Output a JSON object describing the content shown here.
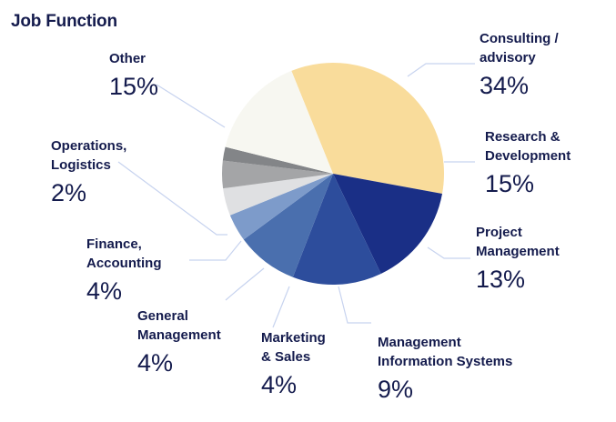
{
  "chart_data": {
    "type": "pie",
    "title": "Job Function",
    "slices": [
      {
        "label": "Consulting /\nadvisory",
        "value": 34,
        "display": "34%",
        "color": "#f9dc9b"
      },
      {
        "label": "Research &\nDevelopment",
        "value": 15,
        "display": "15%",
        "color": "#1a2f86"
      },
      {
        "label": "Project\nManagement",
        "value": 13,
        "display": "13%",
        "color": "#2d4d9c"
      },
      {
        "label": "Management\nInformation Systems",
        "value": 9,
        "display": "9%",
        "color": "#4a6fae"
      },
      {
        "label": "Marketing\n& Sales",
        "value": 4,
        "display": "4%",
        "color": "#7d9bca"
      },
      {
        "label": "General\nManagement",
        "value": 4,
        "display": "4%",
        "color": "#dfe0e2"
      },
      {
        "label": "Finance,\nAccounting",
        "value": 4,
        "display": "4%",
        "color": "#a4a5a7"
      },
      {
        "label": "Operations,\nLogistics",
        "value": 2,
        "display": "2%",
        "color": "#838588"
      },
      {
        "label": "Other",
        "value": 15,
        "display": "15%",
        "color": "#f7f7f1"
      }
    ],
    "leader_color": "#c7d3ef"
  }
}
